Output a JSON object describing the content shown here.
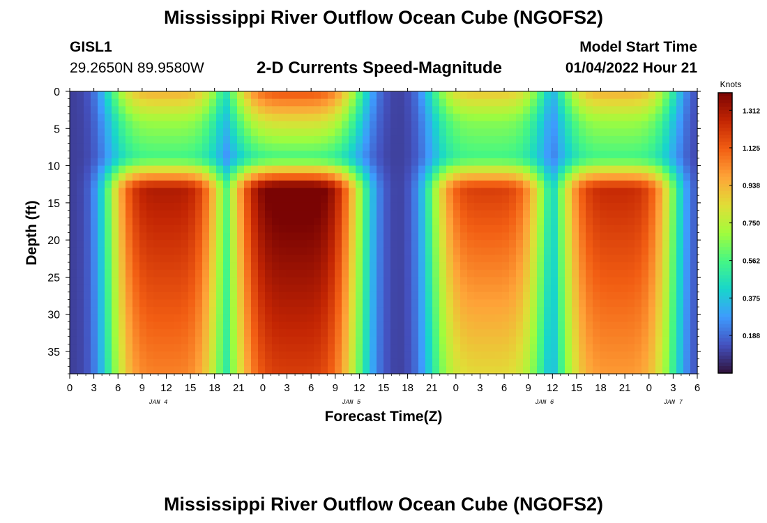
{
  "header": {
    "title": "Mississippi River Outflow Ocean Cube (NGOFS2)",
    "station_id": "GISL1",
    "coordinates": "29.2650N  89.9580W",
    "subtitle": "2-D Currents Speed-Magnitude",
    "start_label": "Model Start Time",
    "start_time": "01/04/2022 Hour 21"
  },
  "footer": {
    "title_repeat": "Mississippi River Outflow Ocean Cube (NGOFS2)"
  },
  "chart_data": {
    "type": "heatmap",
    "title": "2-D Currents Speed-Magnitude",
    "xlabel": "Forecast Time(Z)",
    "ylabel": "Depth (ft)",
    "x_hours_range": [
      0,
      78
    ],
    "ylim": [
      0,
      38
    ],
    "y_ticks": [
      "0",
      "5",
      "10",
      "15",
      "20",
      "25",
      "30",
      "35"
    ],
    "y_tick_values": [
      0,
      5,
      10,
      15,
      20,
      25,
      30,
      35
    ],
    "x_tick_labels": [
      "0",
      "3",
      "6",
      "9",
      "12",
      "15",
      "18",
      "21",
      "0",
      "3",
      "6",
      "9",
      "12",
      "15",
      "18",
      "21",
      "0",
      "3",
      "6",
      "9",
      "12",
      "15",
      "18",
      "21",
      "0",
      "3",
      "6"
    ],
    "date_labels": [
      {
        "label": "JAN 4",
        "hour": 11
      },
      {
        "label": "JAN 5",
        "hour": 35
      },
      {
        "label": "JAN 6",
        "hour": 59
      },
      {
        "label": "JAN 7",
        "hour": 75
      }
    ],
    "colorbar": {
      "title": "Knots",
      "min": 0.0,
      "max": 1.4,
      "ticks": [
        "1.312",
        "1.125",
        "0.938",
        "0.750",
        "0.562",
        "0.375",
        "0.188"
      ],
      "tick_values": [
        1.312,
        1.125,
        0.938,
        0.75,
        0.562,
        0.375,
        0.188
      ]
    },
    "time_profile_peaks_hours": [
      12,
      28,
      52,
      68
    ],
    "time_profile_minima_hours": [
      4,
      22,
      40,
      59,
      77
    ],
    "peak_speed_knots_midwater": [
      1.2,
      1.35,
      1.1,
      1.15
    ],
    "surface_speed_knots_at_peaks": [
      0.85,
      1.05,
      0.8,
      0.85
    ]
  }
}
